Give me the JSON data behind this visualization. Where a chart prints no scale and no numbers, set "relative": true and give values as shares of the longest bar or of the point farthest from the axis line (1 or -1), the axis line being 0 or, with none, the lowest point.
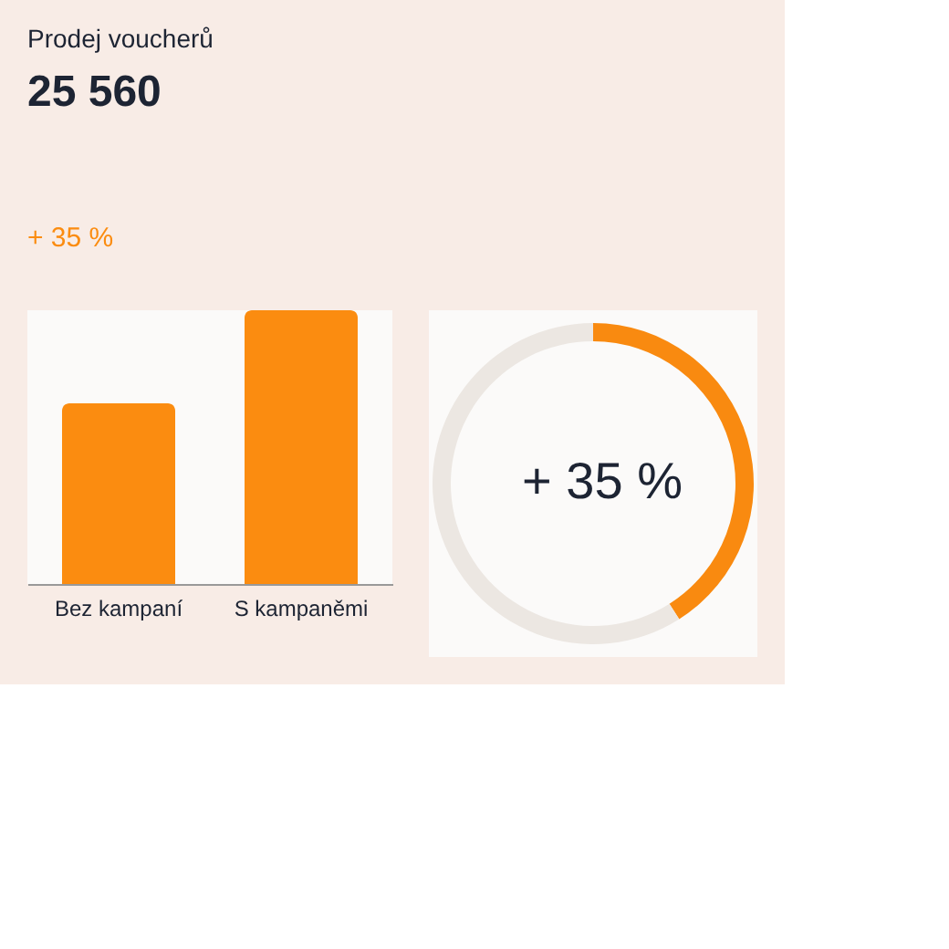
{
  "chart_data": [
    {
      "type": "bar",
      "title": "Prodej voucherů",
      "subtitle": "25 560",
      "annotations": [
        "+ 35 %"
      ],
      "categories": [
        "Bez kampaní",
        "S kampaněmi"
      ],
      "values": [
        0.66,
        1
      ],
      "color": "#fb8c10",
      "relative": true
    },
    {
      "type": "donut",
      "categories": [
        null,
        null
      ],
      "values": [
        41,
        59
      ],
      "colors": [
        "#f98a10",
        "#ece7e2"
      ],
      "annotations": [
        "+ 35 %"
      ]
    }
  ]
}
